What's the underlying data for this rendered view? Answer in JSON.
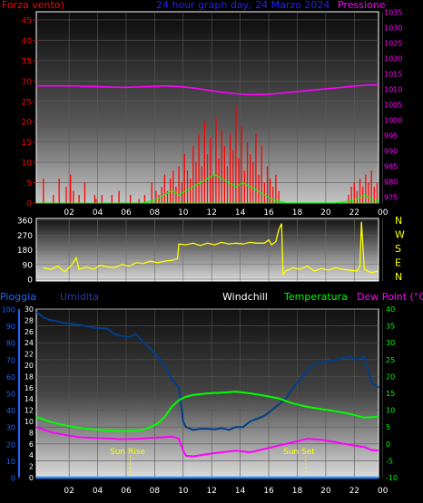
{
  "header": {
    "left_label": "Forza vento)",
    "title": "24 hour graph day, 24 Marzo 2024",
    "right_label": "Pressione"
  },
  "bottom_header": {
    "pioggia": "Pioggia",
    "umidita": "Umidita",
    "windchill": "Windchill",
    "temperatura": "Temperatura",
    "dewpoint": "Dew Point (°C)"
  },
  "annotations": {
    "sun_rise": "Sun Rise",
    "sun_set": "Sun Set"
  },
  "colors": {
    "wind": "#ff0000",
    "gust_avg": "#00ff00",
    "pressure": "#ff00ff",
    "direction": "#ffff00",
    "humidity": "#003f8a",
    "temperature": "#00ff00",
    "dewpoint": "#ff00ff",
    "rain": "#1e8cff",
    "left_axis": "#ff0000",
    "right_axis": "#ff00ff",
    "compass": "#ffff00",
    "blue_axis": "#1e64ff",
    "green_axis": "#00ff00"
  },
  "chart_data": [
    {
      "type": "bar",
      "title": "24 hour graph day, 24 Marzo 2024",
      "xlabel": "",
      "ylabel": "Forza vento)",
      "y2label": "Pressione",
      "x_ticks": [
        "02",
        "04",
        "06",
        "08",
        "10",
        "12",
        "14",
        "16",
        "18",
        "20",
        "22",
        "00"
      ],
      "y_ticks": [
        0,
        5,
        10,
        15,
        20,
        25,
        30,
        35,
        40,
        45
      ],
      "ylim": [
        0,
        47
      ],
      "y2_ticks": [
        975,
        980,
        985,
        990,
        995,
        1000,
        1005,
        1010,
        1015,
        1020,
        1025,
        1030,
        1035
      ],
      "y2lim": [
        973,
        1035
      ],
      "series": [
        {
          "name": "Forza vento",
          "axis": "left",
          "kind": "bars",
          "x": [
            0.5,
            1.2,
            1.6,
            2.1,
            2.4,
            2.6,
            3.0,
            3.4,
            4.1,
            4.2,
            4.6,
            5.3,
            5.8,
            6.6,
            7.2,
            7.6,
            8.1,
            8.4,
            8.6,
            8.8,
            9.0,
            9.2,
            9.4,
            9.6,
            9.8,
            10.0,
            10.2,
            10.4,
            10.6,
            10.8,
            11.0,
            11.2,
            11.4,
            11.6,
            11.8,
            12.0,
            12.2,
            12.4,
            12.6,
            12.8,
            13.0,
            13.2,
            13.4,
            13.6,
            13.8,
            14.0,
            14.2,
            14.4,
            14.6,
            14.8,
            15.0,
            15.2,
            15.4,
            15.6,
            15.8,
            16.0,
            16.2,
            16.4,
            16.6,
            16.8,
            17.0,
            21.9,
            22.1,
            22.3,
            22.5,
            22.7,
            22.9,
            23.1,
            23.3,
            23.5,
            23.7,
            23.9
          ],
          "y": [
            6,
            2,
            6,
            4,
            7,
            3,
            2,
            5,
            2,
            1,
            2,
            2,
            3,
            2,
            1,
            2,
            5,
            3,
            2,
            4,
            7,
            3,
            6,
            8,
            4,
            9,
            5,
            12,
            8,
            6,
            14,
            10,
            17,
            9,
            20,
            12,
            16,
            7,
            21,
            11,
            18,
            14,
            9,
            17,
            13,
            24,
            11,
            19,
            8,
            15,
            12,
            10,
            17,
            7,
            14,
            5,
            9,
            6,
            4,
            7,
            3,
            2,
            4,
            5,
            3,
            6,
            4,
            7,
            5,
            8,
            4,
            5
          ]
        },
        {
          "name": "",
          "axis": "left",
          "kind": "line",
          "x": [
            7.5,
            8.0,
            8.5,
            9.0,
            9.5,
            10.0,
            10.5,
            11.0,
            11.5,
            12.0,
            12.5,
            13.0,
            13.5,
            14.0,
            14.5,
            15.0,
            15.5,
            16.0,
            16.5,
            17.0,
            17.5,
            18.0,
            21.0,
            22.0,
            22.5,
            23.0,
            23.5,
            24.0
          ],
          "y": [
            0,
            0.5,
            1,
            2,
            3,
            2,
            3,
            4,
            5,
            6,
            7,
            6,
            5,
            4,
            5,
            4,
            3,
            2,
            1,
            0.5,
            0,
            0,
            0,
            0.5,
            1,
            2,
            1,
            0.5
          ]
        },
        {
          "name": "Pressione",
          "axis": "right",
          "kind": "line",
          "x": [
            0,
            1,
            2,
            3,
            4,
            5,
            6,
            7,
            8,
            9,
            10,
            11,
            12,
            13,
            14,
            15,
            16,
            17,
            18,
            19,
            20,
            21,
            22,
            23,
            24
          ],
          "y": [
            1011,
            1011,
            1011,
            1010.9,
            1010.8,
            1010.6,
            1010.5,
            1010.6,
            1010.8,
            1011,
            1010.8,
            1010.3,
            1009.6,
            1008.9,
            1008.4,
            1008.1,
            1008.2,
            1008.5,
            1009,
            1009.4,
            1009.9,
            1010.3,
            1010.8,
            1011.2,
            1011.3
          ]
        }
      ]
    },
    {
      "type": "line",
      "xlabel": "",
      "ylabel": "",
      "y_ticks": [
        0,
        90,
        180,
        270,
        360
      ],
      "ylim": [
        0,
        360
      ],
      "compass": [
        "N",
        "W",
        "S",
        "E",
        "N"
      ],
      "x_ticks": [
        "02",
        "04",
        "06",
        "08",
        "10",
        "12",
        "14",
        "16",
        "18",
        "20",
        "22",
        "00"
      ],
      "series": [
        {
          "name": "",
          "x": [
            0.5,
            1,
            1.5,
            2,
            2.5,
            2.8,
            3,
            3.5,
            4,
            4.5,
            5,
            5.5,
            6,
            6.5,
            7,
            7.5,
            8,
            8.5,
            9,
            9.5,
            9.9,
            10,
            10.5,
            11,
            11.5,
            12,
            12.5,
            13,
            13.5,
            14,
            14.5,
            15,
            15.5,
            16,
            16.3,
            16.5,
            16.8,
            17.0,
            17.2,
            17.3,
            17.5,
            18,
            18.5,
            19,
            19.5,
            20,
            20.5,
            21,
            21.5,
            22,
            22.5,
            22.7,
            22.8,
            23,
            23.5,
            24
          ],
          "y": [
            70,
            60,
            80,
            45,
            90,
            130,
            60,
            75,
            60,
            85,
            75,
            70,
            90,
            80,
            100,
            95,
            110,
            100,
            110,
            115,
            125,
            215,
            210,
            220,
            205,
            220,
            210,
            225,
            215,
            220,
            215,
            225,
            220,
            220,
            240,
            210,
            230,
            300,
            340,
            30,
            50,
            70,
            60,
            80,
            50,
            65,
            55,
            70,
            60,
            55,
            50,
            80,
            350,
            60,
            40,
            50
          ]
        }
      ]
    },
    {
      "type": "line",
      "title": "",
      "xlabel": "",
      "ylabel": "Pioggia",
      "y_ticks": [
        0,
        10,
        20,
        30,
        40,
        50,
        60,
        70,
        80,
        90,
        100
      ],
      "ylim": [
        0,
        100
      ],
      "humidity_ticks": [
        0,
        2,
        4,
        6,
        8,
        10,
        12,
        14,
        16,
        18,
        20,
        22,
        24,
        26,
        28,
        30
      ],
      "humidity_lim": [
        0,
        30
      ],
      "temp_ticks": [
        -10,
        -5,
        0,
        5,
        10,
        15,
        20,
        25,
        30,
        35,
        40
      ],
      "temp_lim": [
        -10,
        40
      ],
      "x_ticks": [
        "02",
        "04",
        "06",
        "08",
        "10",
        "12",
        "14",
        "16",
        "18",
        "20",
        "22",
        "00"
      ],
      "sun_rise": 6.6,
      "sun_set": 18.9,
      "series": [
        {
          "name": "Umidita",
          "color_key": "humidity",
          "x": [
            0,
            0.5,
            1,
            1.5,
            2,
            3,
            4,
            5,
            5.5,
            6,
            6.5,
            7,
            7.5,
            8,
            8.5,
            9,
            9.5,
            10,
            10.3,
            10.5,
            11,
            11.5,
            12,
            12.5,
            13,
            13.5,
            14,
            14.5,
            15,
            15.5,
            16,
            16.5,
            17,
            17.5,
            18,
            18.5,
            19,
            19.5,
            20,
            20.5,
            21,
            21.5,
            22,
            22.5,
            23,
            23.5,
            24
          ],
          "y": [
            29.5,
            28.5,
            28,
            27.8,
            27.5,
            27.2,
            26.7,
            26.5,
            25.5,
            25.2,
            25,
            25.5,
            24,
            23,
            21.5,
            20,
            17.5,
            16,
            10,
            9,
            8.5,
            8.7,
            8.7,
            8.6,
            8.8,
            8.5,
            9,
            9,
            10,
            10.5,
            11,
            12,
            13,
            14,
            16,
            17.5,
            19,
            20.3,
            20.5,
            20.8,
            21,
            21.2,
            21.5,
            21,
            21.5,
            17,
            16
          ]
        },
        {
          "name": "Temperatura",
          "color_key": "temperature",
          "x": [
            0,
            1,
            2,
            3,
            4,
            5,
            6,
            7,
            7.5,
            8,
            8.5,
            9,
            9.5,
            10,
            10.5,
            11,
            12,
            13,
            14,
            15,
            16,
            17,
            18,
            19,
            20,
            21,
            22,
            23,
            24
          ],
          "y": [
            8,
            6.5,
            5.5,
            4.8,
            4.3,
            4,
            3.8,
            3.9,
            4.3,
            5,
            6,
            8,
            11,
            13,
            14,
            14.5,
            15,
            15.2,
            15.5,
            15,
            14.3,
            13.5,
            12,
            11,
            10.3,
            9.7,
            8.9,
            7.8,
            8
          ]
        },
        {
          "name": "Dew Point (°C)",
          "color_key": "dewpoint",
          "x": [
            0,
            1,
            2,
            3,
            4,
            5,
            6,
            7,
            8,
            9,
            9.5,
            10,
            10.3,
            10.5,
            11,
            12,
            13,
            14,
            15,
            16,
            17,
            18,
            19,
            20,
            21,
            22,
            23,
            23.5,
            24
          ],
          "y": [
            5,
            3.5,
            2.7,
            2,
            1.8,
            1.6,
            1.4,
            1.5,
            1.8,
            2,
            2.2,
            1.5,
            -2,
            -3.5,
            -3.7,
            -3,
            -2.5,
            -2,
            -2.5,
            -1.5,
            -0.5,
            0.5,
            1.5,
            1.2,
            0.5,
            -0.3,
            -0.9,
            -1.8,
            -2
          ]
        },
        {
          "name": "Pioggia",
          "color_key": "rain",
          "x": [
            0,
            24
          ],
          "y": [
            0,
            0
          ]
        }
      ]
    }
  ]
}
